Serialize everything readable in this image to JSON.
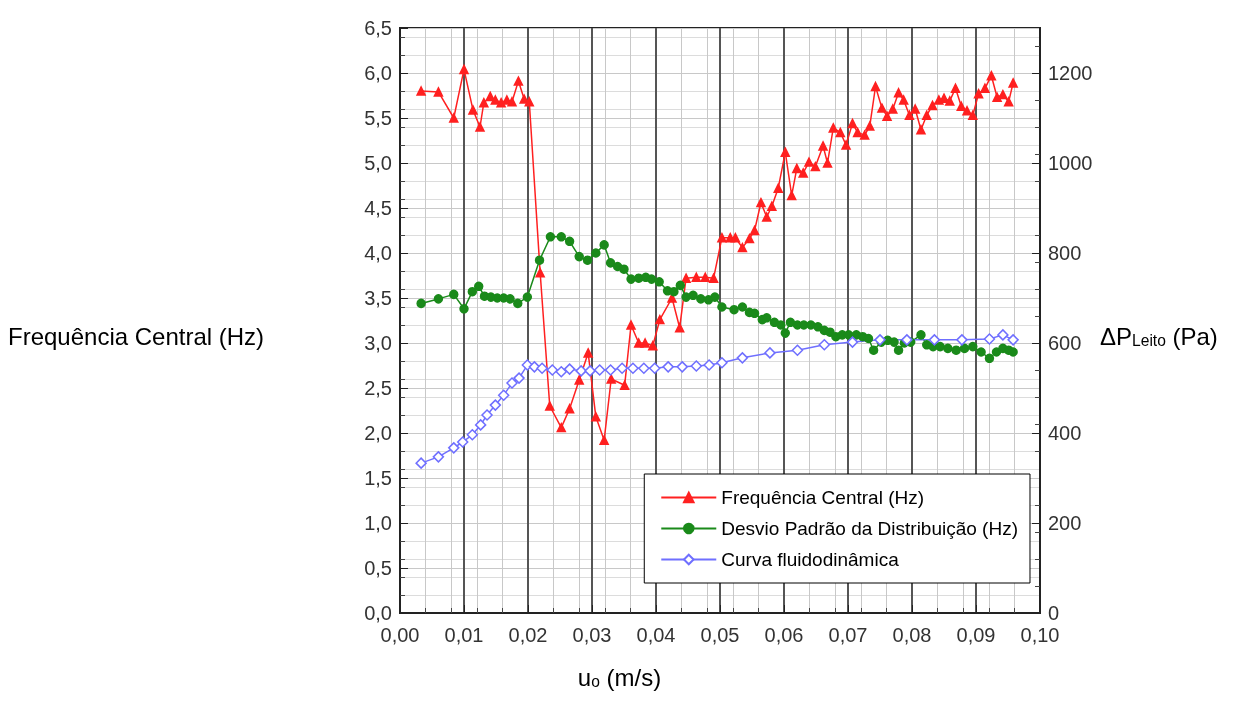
{
  "chart_data": {
    "type": "line",
    "xlabel": "u$_{o}$ (m/s)",
    "ylabel": "Frequência Central (Hz)",
    "y2label": "ΔP$_{Leito}$ (Pa)",
    "xlim": [
      0,
      0.1
    ],
    "xticks": [
      {
        "value": 0,
        "label": "0,00"
      },
      {
        "value": 0.01,
        "label": "0,01"
      },
      {
        "value": 0.02,
        "label": "0,02"
      },
      {
        "value": 0.03,
        "label": "0,03"
      },
      {
        "value": 0.04,
        "label": "0,04"
      },
      {
        "value": 0.05,
        "label": "0,05"
      },
      {
        "value": 0.06,
        "label": "0,06"
      },
      {
        "value": 0.07,
        "label": "0,07"
      },
      {
        "value": 0.08,
        "label": "0,08"
      },
      {
        "value": 0.09,
        "label": "0,09"
      },
      {
        "value": 0.1,
        "label": "0,10"
      }
    ],
    "ylim": [
      0,
      6.5
    ],
    "yticks": [
      {
        "value": 0,
        "label": "0,0"
      },
      {
        "value": 0.5,
        "label": "0,5"
      },
      {
        "value": 1,
        "label": "1,0"
      },
      {
        "value": 1.5,
        "label": "1,5"
      },
      {
        "value": 2,
        "label": "2,0"
      },
      {
        "value": 2.5,
        "label": "2,5"
      },
      {
        "value": 3,
        "label": "3,0"
      },
      {
        "value": 3.5,
        "label": "3,5"
      },
      {
        "value": 4,
        "label": "4,0"
      },
      {
        "value": 4.5,
        "label": "4,5"
      },
      {
        "value": 5,
        "label": "5,0"
      },
      {
        "value": 5.5,
        "label": "5,5"
      },
      {
        "value": 6,
        "label": "6,0"
      },
      {
        "value": 6.5,
        "label": "6,5"
      }
    ],
    "y2lim": [
      0,
      1300
    ],
    "y2ticks": [
      0,
      200,
      400,
      600,
      800,
      1000,
      1200
    ],
    "grid": true,
    "legend": "bottom right",
    "line_style": "solid",
    "series": [
      {
        "name": "Frequência Central (Hz)",
        "color": "#ff2020",
        "marker": "triangle",
        "x": [
          0.0033,
          0.006,
          0.0084,
          0.01,
          0.0114,
          0.0125,
          0.0131,
          0.0141,
          0.0149,
          0.0158,
          0.0167,
          0.0175,
          0.0185,
          0.0194,
          0.0202,
          0.0219,
          0.0234,
          0.0252,
          0.0265,
          0.028,
          0.0294,
          0.0306,
          0.0319,
          0.033,
          0.0351,
          0.0361,
          0.0373,
          0.0383,
          0.0395,
          0.0406,
          0.0425,
          0.0437,
          0.0447,
          0.0463,
          0.0477,
          0.049,
          0.0503,
          0.0516,
          0.0524,
          0.0535,
          0.0546,
          0.0554,
          0.0564,
          0.0573,
          0.0581,
          0.0591,
          0.0602,
          0.0612,
          0.062,
          0.063,
          0.0639,
          0.0649,
          0.0661,
          0.0668,
          0.0677,
          0.0688,
          0.0697,
          0.0707,
          0.0715,
          0.0726,
          0.0734,
          0.0743,
          0.0753,
          0.0761,
          0.077,
          0.0779,
          0.0787,
          0.0796,
          0.0805,
          0.0814,
          0.0823,
          0.0832,
          0.0842,
          0.085,
          0.0859,
          0.0868,
          0.0877,
          0.0886,
          0.0895,
          0.0904,
          0.0914,
          0.0924,
          0.0933,
          0.0942,
          0.0951,
          0.0958
        ],
        "values": [
          5.8,
          5.79,
          5.5,
          6.04,
          5.59,
          5.4,
          5.67,
          5.74,
          5.7,
          5.67,
          5.7,
          5.68,
          5.91,
          5.71,
          5.68,
          3.78,
          2.3,
          2.06,
          2.27,
          2.59,
          2.89,
          2.18,
          1.92,
          2.6,
          2.53,
          3.2,
          3.0,
          3.0,
          2.97,
          3.26,
          3.5,
          3.17,
          3.72,
          3.73,
          3.73,
          3.72,
          4.17,
          4.17,
          4.17,
          4.06,
          4.16,
          4.25,
          4.56,
          4.4,
          4.52,
          4.72,
          5.12,
          4.64,
          4.94,
          4.89,
          5.01,
          4.96,
          5.19,
          5.0,
          5.39,
          5.34,
          5.2,
          5.44,
          5.34,
          5.31,
          5.41,
          5.85,
          5.61,
          5.52,
          5.6,
          5.78,
          5.7,
          5.53,
          5.6,
          5.37,
          5.53,
          5.64,
          5.7,
          5.72,
          5.69,
          5.83,
          5.63,
          5.58,
          5.53,
          5.77,
          5.83,
          5.97,
          5.73,
          5.76,
          5.68,
          5.89
        ]
      },
      {
        "name": "Desvio Padrão da Distribuição (Hz)",
        "color": "#1a8a1a",
        "marker": "circle",
        "x": [
          0.0033,
          0.006,
          0.0084,
          0.01,
          0.0113,
          0.0123,
          0.0132,
          0.0142,
          0.0152,
          0.0162,
          0.0172,
          0.0184,
          0.0199,
          0.0218,
          0.0235,
          0.0252,
          0.0265,
          0.028,
          0.0293,
          0.0306,
          0.0319,
          0.0329,
          0.034,
          0.035,
          0.0361,
          0.0373,
          0.0384,
          0.0393,
          0.0405,
          0.0418,
          0.0428,
          0.0438,
          0.0447,
          0.0458,
          0.047,
          0.0482,
          0.0492,
          0.0503,
          0.0522,
          0.0535,
          0.0546,
          0.0554,
          0.0566,
          0.0573,
          0.0585,
          0.0595,
          0.0602,
          0.061,
          0.0621,
          0.0631,
          0.0642,
          0.0653,
          0.0663,
          0.0672,
          0.0681,
          0.0691,
          0.0701,
          0.0713,
          0.0723,
          0.0732,
          0.074,
          0.0752,
          0.0762,
          0.0772,
          0.0779,
          0.0788,
          0.0798,
          0.0814,
          0.0823,
          0.0833,
          0.0844,
          0.0856,
          0.0869,
          0.0882,
          0.0895,
          0.0908,
          0.0921,
          0.0932,
          0.0942,
          0.0951,
          0.0958
        ],
        "values": [
          3.44,
          3.49,
          3.54,
          3.38,
          3.57,
          3.63,
          3.52,
          3.51,
          3.5,
          3.5,
          3.49,
          3.44,
          3.51,
          3.92,
          4.18,
          4.18,
          4.13,
          3.96,
          3.92,
          4.0,
          4.09,
          3.89,
          3.85,
          3.82,
          3.71,
          3.72,
          3.73,
          3.71,
          3.68,
          3.58,
          3.57,
          3.64,
          3.51,
          3.53,
          3.49,
          3.48,
          3.51,
          3.4,
          3.37,
          3.4,
          3.34,
          3.33,
          3.26,
          3.28,
          3.23,
          3.2,
          3.11,
          3.23,
          3.2,
          3.2,
          3.2,
          3.18,
          3.14,
          3.12,
          3.07,
          3.09,
          3.09,
          3.09,
          3.07,
          3.05,
          2.92,
          3.01,
          3.03,
          3.01,
          2.92,
          3.0,
          3.01,
          3.09,
          2.98,
          2.96,
          2.96,
          2.94,
          2.92,
          2.94,
          2.96,
          2.9,
          2.83,
          2.9,
          2.94,
          2.92,
          2.9
        ]
      },
      {
        "name": "Curva fluidodinâmica",
        "color": "#6f6fff",
        "marker": "diamond",
        "axis": "y2",
        "x": [
          0.0033,
          0.006,
          0.0084,
          0.0098,
          0.0113,
          0.0126,
          0.0136,
          0.0149,
          0.0162,
          0.0175,
          0.0186,
          0.0199,
          0.021,
          0.0222,
          0.0238,
          0.0252,
          0.0265,
          0.0283,
          0.0297,
          0.0312,
          0.0329,
          0.0347,
          0.0364,
          0.0381,
          0.0398,
          0.0419,
          0.0441,
          0.0463,
          0.0483,
          0.0503,
          0.0535,
          0.0578,
          0.0621,
          0.0663,
          0.0707,
          0.075,
          0.0792,
          0.0835,
          0.0878,
          0.0921,
          0.0942,
          0.0958
        ],
        "values": [
          333,
          347,
          367,
          380,
          396,
          418,
          440,
          462,
          484,
          511,
          522,
          551,
          547,
          544,
          540,
          536,
          542,
          538,
          538,
          540,
          540,
          544,
          544,
          544,
          544,
          547,
          547,
          549,
          551,
          556,
          567,
          578,
          584,
          596,
          602,
          607,
          607,
          607,
          607,
          609,
          618,
          607
        ]
      }
    ]
  }
}
